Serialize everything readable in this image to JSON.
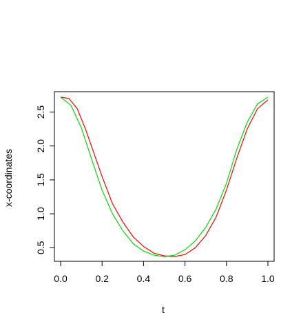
{
  "chart_data": {
    "type": "line",
    "title": "",
    "xlabel": "t",
    "ylabel": "x-coordinates",
    "xlim": [
      -0.03,
      1.03
    ],
    "ylim": [
      0.3,
      2.8
    ],
    "grid": false,
    "legend": "none",
    "x_ticks": [
      0.0,
      0.2,
      0.4,
      0.6,
      0.8,
      1.0
    ],
    "x_tick_labels": [
      "0.0",
      "0.2",
      "0.4",
      "0.6",
      "0.8",
      "1.0"
    ],
    "y_ticks": [
      0.5,
      1.0,
      1.5,
      2.0,
      2.5
    ],
    "y_tick_labels": [
      "0.5",
      "1.0",
      "1.5",
      "2.0",
      "2.5"
    ],
    "series": [
      {
        "color": "#00dd00",
        "x": [
          0.0,
          0.05,
          0.1,
          0.15,
          0.2,
          0.25,
          0.3,
          0.35,
          0.4,
          0.45,
          0.5,
          0.55,
          0.6,
          0.65,
          0.7,
          0.75,
          0.8,
          0.85,
          0.9,
          0.95,
          1.0
        ],
        "y": [
          2.72,
          2.6,
          2.27,
          1.8,
          1.35,
          1.0,
          0.75,
          0.56,
          0.45,
          0.39,
          0.37,
          0.39,
          0.47,
          0.6,
          0.8,
          1.07,
          1.45,
          1.95,
          2.35,
          2.62,
          2.72
        ]
      },
      {
        "color": "#ff0000",
        "x": [
          0.0,
          0.04,
          0.08,
          0.12,
          0.16,
          0.2,
          0.25,
          0.3,
          0.35,
          0.4,
          0.45,
          0.5,
          0.55,
          0.6,
          0.65,
          0.7,
          0.75,
          0.8,
          0.85,
          0.9,
          0.95,
          1.0
        ],
        "y": [
          2.72,
          2.7,
          2.55,
          2.25,
          1.9,
          1.55,
          1.15,
          0.88,
          0.66,
          0.52,
          0.42,
          0.38,
          0.37,
          0.4,
          0.5,
          0.68,
          0.95,
          1.35,
          1.82,
          2.25,
          2.55,
          2.68
        ]
      }
    ]
  }
}
